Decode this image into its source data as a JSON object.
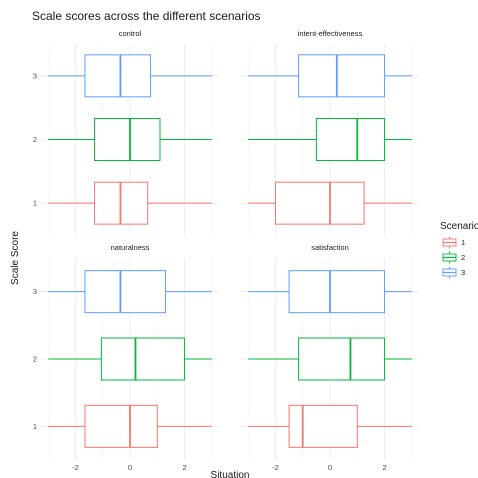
{
  "chart_data": {
    "type": "boxplot",
    "title": "Scale scores across the different scenarios",
    "xlabel": "Situation",
    "ylabel": "Scale Score",
    "xlim": [
      -3.3,
      3.3
    ],
    "x_ticks": [
      -2,
      0,
      2
    ],
    "y_categories": [
      "1",
      "2",
      "3"
    ],
    "grid": true,
    "legend": {
      "title": "Scenario",
      "position": "right",
      "entries": [
        {
          "label": "1",
          "color": "#F8766D"
        },
        {
          "label": "2",
          "color": "#00BA38"
        },
        {
          "label": "3",
          "color": "#619CFF"
        }
      ]
    },
    "panels": [
      {
        "title": "control",
        "boxes": [
          {
            "scenario": "1",
            "min": -3,
            "q1": -1.3,
            "median": -0.35,
            "q3": 0.65,
            "max": 3
          },
          {
            "scenario": "2",
            "min": -3,
            "q1": -1.3,
            "median": 0.0,
            "q3": 1.1,
            "max": 3
          },
          {
            "scenario": "3",
            "min": -3,
            "q1": -1.65,
            "median": -0.35,
            "q3": 0.75,
            "max": 3
          }
        ]
      },
      {
        "title": "intent-effectiveness",
        "boxes": [
          {
            "scenario": "1",
            "min": -3,
            "q1": -2.0,
            "median": 0.0,
            "q3": 1.25,
            "max": 3
          },
          {
            "scenario": "2",
            "min": -3,
            "q1": -0.5,
            "median": 1.0,
            "q3": 2.0,
            "max": 3
          },
          {
            "scenario": "3",
            "min": -3,
            "q1": -1.15,
            "median": 0.25,
            "q3": 2.0,
            "max": 3
          }
        ]
      },
      {
        "title": "naturalness",
        "boxes": [
          {
            "scenario": "1",
            "min": -3,
            "q1": -1.65,
            "median": 0.0,
            "q3": 1.0,
            "max": 3
          },
          {
            "scenario": "2",
            "min": -3,
            "q1": -1.05,
            "median": 0.2,
            "q3": 2.0,
            "max": 3
          },
          {
            "scenario": "3",
            "min": -3,
            "q1": -1.65,
            "median": -0.35,
            "q3": 1.3,
            "max": 3
          }
        ]
      },
      {
        "title": "satisfaction",
        "boxes": [
          {
            "scenario": "1",
            "min": -3,
            "q1": -1.5,
            "median": -1.0,
            "q3": 1.0,
            "max": 3
          },
          {
            "scenario": "2",
            "min": -3,
            "q1": -1.15,
            "median": 0.75,
            "q3": 2.0,
            "max": 3
          },
          {
            "scenario": "3",
            "min": -3,
            "q1": -1.5,
            "median": 0.0,
            "q3": 2.0,
            "max": 3
          }
        ]
      }
    ]
  }
}
